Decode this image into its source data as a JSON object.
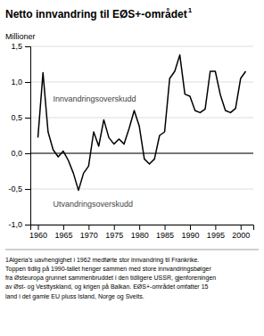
{
  "chart_data": {
    "type": "line",
    "title": "Netto innvandring til EØS+-området",
    "title_superscript": "1",
    "ylabel": "Millioner",
    "x": [
      1960,
      1961,
      1962,
      1963,
      1964,
      1965,
      1966,
      1967,
      1968,
      1969,
      1970,
      1971,
      1972,
      1973,
      1974,
      1975,
      1976,
      1977,
      1978,
      1979,
      1980,
      1981,
      1982,
      1983,
      1984,
      1985,
      1986,
      1987,
      1988,
      1989,
      1990,
      1991,
      1992,
      1993,
      1994,
      1995,
      1996,
      1997,
      1998,
      1999,
      2000,
      2001
    ],
    "values": [
      0.22,
      1.13,
      0.3,
      0.05,
      -0.05,
      0.03,
      -0.1,
      -0.28,
      -0.52,
      -0.28,
      -0.18,
      0.3,
      0.1,
      0.47,
      0.22,
      0.13,
      0.2,
      0.13,
      0.35,
      0.6,
      0.38,
      -0.08,
      -0.15,
      -0.08,
      0.25,
      0.3,
      1.05,
      1.15,
      1.38,
      0.83,
      0.8,
      0.6,
      0.57,
      0.62,
      1.15,
      1.15,
      0.82,
      0.6,
      0.57,
      0.63,
      1.05,
      1.15
    ],
    "color": "#000000",
    "xlim": [
      1958.5,
      2002.5
    ],
    "ylim": [
      -1.0,
      1.5
    ],
    "xticks": [
      1960,
      1965,
      1970,
      1975,
      1980,
      1985,
      1990,
      1995,
      2000
    ],
    "yticks": [
      {
        "value": -1.0,
        "label": "-1,0"
      },
      {
        "value": -0.5,
        "label": "-0,5"
      },
      {
        "value": 0.0,
        "label": "0,0"
      },
      {
        "value": 0.5,
        "label": "0,5"
      },
      {
        "value": 1.0,
        "label": "1,0"
      },
      {
        "value": 1.5,
        "label": "1,5"
      }
    ],
    "grid": "y",
    "hlines": [
      0
    ],
    "annotations": [
      {
        "text": "Innvandringsoverskudd",
        "x": 1963,
        "y": 0.72
      },
      {
        "text": "Utvandringsoverskudd",
        "x": 1963,
        "y": -0.75
      }
    ],
    "footnote": "1Algeria's uavhengighet i 1962 medførte stor innvandring til Frankrike.\nToppen tidlig på 1990-tallet henger sammen med store innvandringsbølger\nfra Østeuropa grunnet sammenbruddet i den tidligere USSR, gjenforeningen\nav Øst- og Vesttyskland, og krigen på Balkan. EØS+-området omfatter 15\nland i det gamle EU pluss Island, Norge og Sveits."
  }
}
